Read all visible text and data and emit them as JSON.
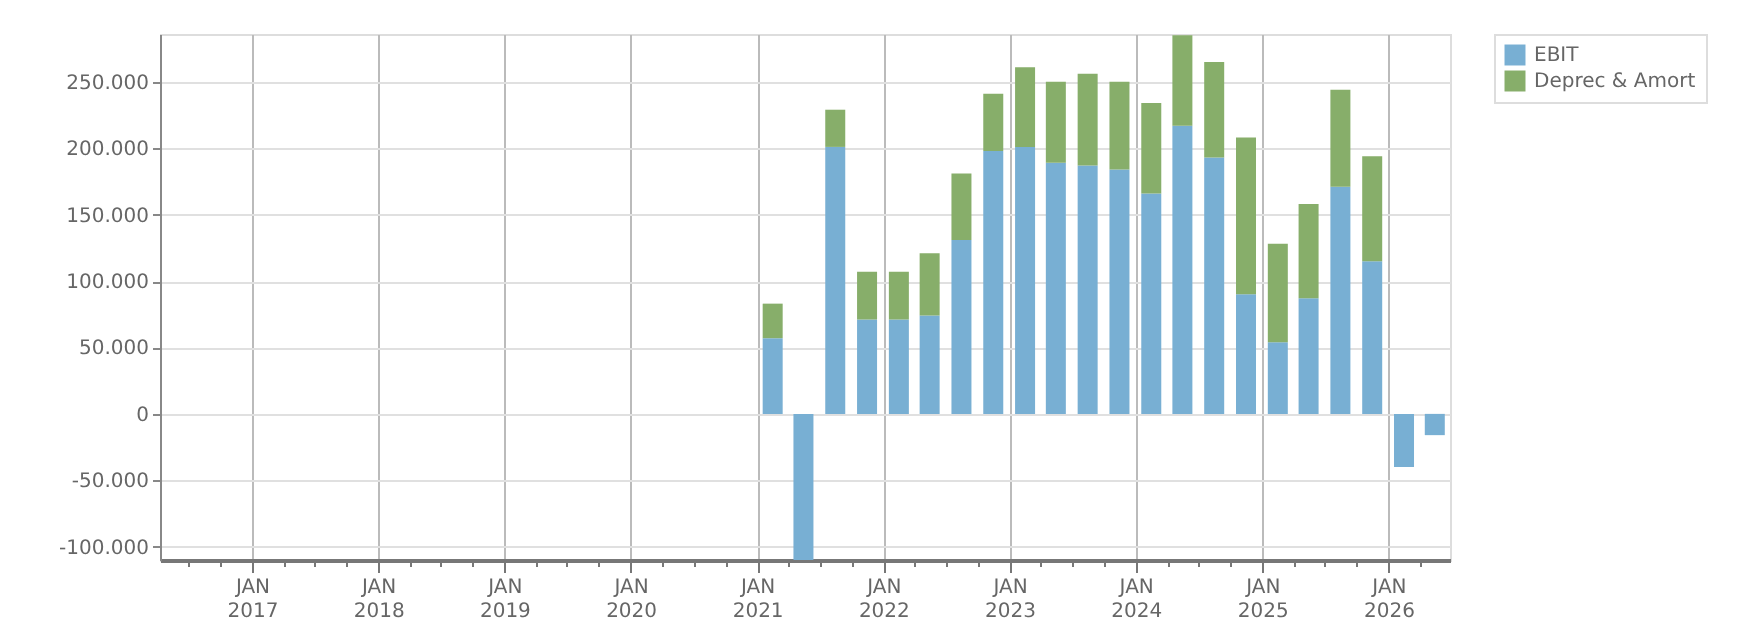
{
  "chart_data": {
    "type": "bar",
    "stacked": true,
    "x": [
      "2021-02-15",
      "2021-05-15",
      "2021-08-15",
      "2021-11-15",
      "2022-02-15",
      "2022-05-15",
      "2022-08-15",
      "2022-11-15",
      "2023-02-15",
      "2023-05-15",
      "2023-08-15",
      "2023-11-15",
      "2024-02-15",
      "2024-05-15",
      "2024-08-15",
      "2024-11-15",
      "2025-02-15",
      "2025-05-15",
      "2025-08-15",
      "2025-11-15",
      "2026-02-15",
      "2026-05-15"
    ],
    "series": [
      {
        "name": "EBIT",
        "color": "#78afd3",
        "values": [
          57000,
          -110000,
          201000,
          71000,
          71000,
          74000,
          131000,
          198000,
          201000,
          189000,
          187000,
          184000,
          166000,
          217000,
          193000,
          90000,
          54000,
          87000,
          171000,
          115000,
          -40000,
          -16000
        ]
      },
      {
        "name": "Deprec & Amort",
        "color": "#87ae6a",
        "values": [
          26000,
          0,
          28000,
          36000,
          36000,
          47000,
          50000,
          43000,
          60000,
          61000,
          69000,
          66000,
          68000,
          68000,
          72000,
          118000,
          74000,
          71000,
          73000,
          79000,
          0,
          0
        ]
      }
    ],
    "ylim": [
      -110000,
      286000
    ],
    "yticks": [
      {
        "value": -100000,
        "label": "-100.000"
      },
      {
        "value": -50000,
        "label": "-50.000"
      },
      {
        "value": 0,
        "label": "0"
      },
      {
        "value": 50000,
        "label": "50.000"
      },
      {
        "value": 100000,
        "label": "100.000"
      },
      {
        "value": 150000,
        "label": "150.000"
      },
      {
        "value": 200000,
        "label": "200.000"
      },
      {
        "value": 250000,
        "label": "250.000"
      }
    ],
    "xlim": [
      "2016-04-10",
      "2026-06-28"
    ],
    "xticks": [
      {
        "value": "2016-07-01",
        "label": null
      },
      {
        "value": "2016-10-01",
        "label": null
      },
      {
        "value": "2017-01-01",
        "label": "JAN\n2017"
      },
      {
        "value": "2017-04-01",
        "label": null
      },
      {
        "value": "2017-07-01",
        "label": null
      },
      {
        "value": "2017-10-01",
        "label": null
      },
      {
        "value": "2018-01-01",
        "label": "JAN\n2018"
      },
      {
        "value": "2018-04-01",
        "label": null
      },
      {
        "value": "2018-07-01",
        "label": null
      },
      {
        "value": "2018-10-01",
        "label": null
      },
      {
        "value": "2019-01-01",
        "label": "JAN\n2019"
      },
      {
        "value": "2019-04-01",
        "label": null
      },
      {
        "value": "2019-07-01",
        "label": null
      },
      {
        "value": "2019-10-01",
        "label": null
      },
      {
        "value": "2020-01-01",
        "label": "JAN\n2020"
      },
      {
        "value": "2020-04-01",
        "label": null
      },
      {
        "value": "2020-07-01",
        "label": null
      },
      {
        "value": "2020-10-01",
        "label": null
      },
      {
        "value": "2021-01-01",
        "label": "JAN\n2021"
      },
      {
        "value": "2021-04-01",
        "label": null
      },
      {
        "value": "2021-07-01",
        "label": null
      },
      {
        "value": "2021-10-01",
        "label": null
      },
      {
        "value": "2022-01-01",
        "label": "JAN\n2022"
      },
      {
        "value": "2022-04-01",
        "label": null
      },
      {
        "value": "2022-07-01",
        "label": null
      },
      {
        "value": "2022-10-01",
        "label": null
      },
      {
        "value": "2023-01-01",
        "label": "JAN\n2023"
      },
      {
        "value": "2023-04-01",
        "label": null
      },
      {
        "value": "2023-07-01",
        "label": null
      },
      {
        "value": "2023-10-01",
        "label": null
      },
      {
        "value": "2024-01-01",
        "label": "JAN\n2024"
      },
      {
        "value": "2024-04-01",
        "label": null
      },
      {
        "value": "2024-07-01",
        "label": null
      },
      {
        "value": "2024-10-01",
        "label": null
      },
      {
        "value": "2025-01-01",
        "label": "JAN\n2025"
      },
      {
        "value": "2025-04-01",
        "label": null
      },
      {
        "value": "2025-07-01",
        "label": null
      },
      {
        "value": "2025-10-01",
        "label": null
      },
      {
        "value": "2026-01-01",
        "label": "JAN\n2026"
      },
      {
        "value": "2026-04-01",
        "label": null
      }
    ],
    "grid": true,
    "legend": "top right"
  }
}
